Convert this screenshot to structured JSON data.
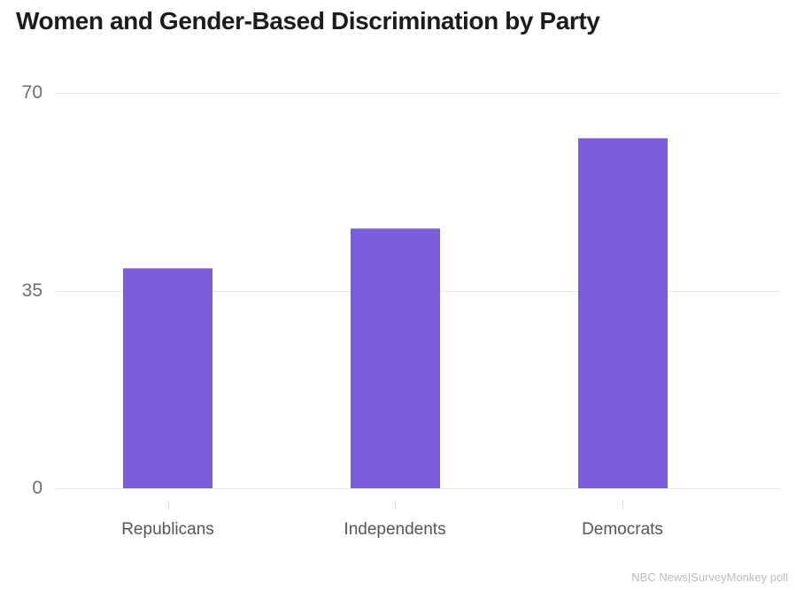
{
  "chart_data": {
    "type": "bar",
    "title": "Women and Gender-Based Discrimination by Party",
    "categories": [
      "Republicans",
      "Independents",
      "Democrats"
    ],
    "values": [
      39,
      46,
      62
    ],
    "xlabel": "",
    "ylabel": "",
    "yticks": [
      70,
      35,
      0
    ],
    "ylim": [
      0,
      70
    ],
    "grid": "horizontal-gridlines-on",
    "legend": "none",
    "bar_color": "#7a5dd8",
    "source": "NBC News|SurveyMonkey poll"
  },
  "colors": {
    "accent_bar": "#7a5dd8",
    "title_text": "#1c1c1c",
    "axis_tick_text": "#6f6f6f",
    "category_text": "#565656",
    "gridline": "#e7e7e7",
    "tick_mark": "#d9d9d9",
    "source_text": "#bdbdbd",
    "background": "#ffffff"
  }
}
